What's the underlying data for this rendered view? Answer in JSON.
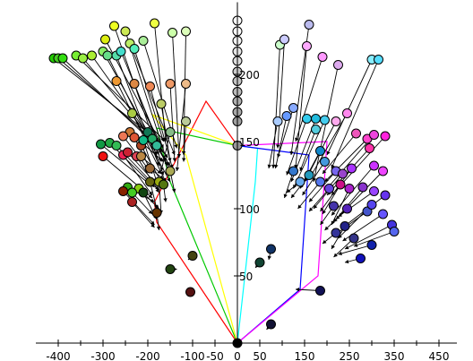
{
  "chart_data": {
    "type": "scatter",
    "title": "",
    "xlabel": "",
    "ylabel": "",
    "xlim": [
      -470,
      500
    ],
    "ylim": [
      -5,
      255
    ],
    "grid": false,
    "legend": "none",
    "x_ticks": [
      -400,
      -300,
      -200,
      -100,
      -50,
      0,
      50,
      150,
      250,
      350,
      450
    ],
    "x_tick_labels": [
      "-400",
      "-300",
      "-200",
      "-100",
      "-50",
      "0",
      "50",
      "150",
      "250",
      "350",
      "450"
    ],
    "y_ticks": [
      50,
      100,
      150,
      200
    ],
    "y_tick_labels": [
      "50",
      "100",
      "150",
      "200"
    ],
    "origin": [
      0,
      0
    ],
    "paths": [
      {
        "color": "#ff0000",
        "points": [
          [
            0,
            0
          ],
          [
            -180,
            90
          ],
          [
            -185,
            105
          ],
          [
            -70,
            180
          ],
          [
            0,
            147
          ]
        ]
      },
      {
        "color": "#00c800",
        "points": [
          [
            0,
            0
          ],
          [
            -150,
            120
          ],
          [
            -180,
            160
          ],
          [
            0,
            147
          ]
        ]
      },
      {
        "color": "#ffff00",
        "points": [
          [
            0,
            0
          ],
          [
            -115,
            140
          ],
          [
            -190,
            170
          ],
          [
            0,
            147
          ]
        ]
      },
      {
        "color": "#00ffff",
        "points": [
          [
            0,
            0
          ],
          [
            40,
            120
          ],
          [
            45,
            145
          ],
          [
            0,
            147
          ]
        ]
      },
      {
        "color": "#0000ff",
        "points": [
          [
            0,
            0
          ],
          [
            140,
            40
          ],
          [
            160,
            140
          ],
          [
            0,
            147
          ]
        ]
      },
      {
        "color": "#ff00ff",
        "points": [
          [
            0,
            0
          ],
          [
            180,
            50
          ],
          [
            200,
            150
          ],
          [
            0,
            147
          ]
        ]
      }
    ],
    "points": [
      {
        "x": -410,
        "y": 212,
        "color": "#22cc00",
        "tail": [
          -175,
          150
        ]
      },
      {
        "x": -400,
        "y": 212,
        "color": "#44cc22",
        "tail": [
          -170,
          146
        ]
      },
      {
        "x": -390,
        "y": 212,
        "color": "#33dd11",
        "tail": [
          -165,
          142
        ]
      },
      {
        "x": -360,
        "y": 214,
        "color": "#77ee33",
        "tail": [
          -160,
          150
        ]
      },
      {
        "x": -345,
        "y": 212,
        "color": "#99ee44",
        "tail": [
          -155,
          138
        ]
      },
      {
        "x": -325,
        "y": 214,
        "color": "#aaee33",
        "tail": [
          -150,
          132
        ]
      },
      {
        "x": -295,
        "y": 226,
        "color": "#ddee11",
        "tail": [
          -165,
          145
        ]
      },
      {
        "x": -275,
        "y": 236,
        "color": "#eeff22",
        "tail": [
          -170,
          135
        ]
      },
      {
        "x": -250,
        "y": 232,
        "color": "#cce955",
        "tail": [
          -150,
          128
        ]
      },
      {
        "x": -240,
        "y": 223,
        "color": "#bbee66",
        "tail": [
          -140,
          140
        ]
      },
      {
        "x": -210,
        "y": 225,
        "color": "#aaee99",
        "tail": [
          -135,
          145
        ]
      },
      {
        "x": -185,
        "y": 238,
        "color": "#eeff44",
        "tail": [
          -160,
          150
        ]
      },
      {
        "x": -145,
        "y": 231,
        "color": "#ccffaa",
        "tail": [
          -130,
          138
        ]
      },
      {
        "x": -115,
        "y": 232,
        "color": "#ddffbb",
        "tail": [
          -120,
          140
        ]
      },
      {
        "x": -300,
        "y": 217,
        "color": "#88ee66",
        "tail": [
          -185,
          148
        ]
      },
      {
        "x": -290,
        "y": 214,
        "color": "#66dd88",
        "tail": [
          -180,
          140
        ]
      },
      {
        "x": -270,
        "y": 214,
        "color": "#55ddaa",
        "tail": [
          -175,
          132
        ]
      },
      {
        "x": -260,
        "y": 217,
        "color": "#44ddcc",
        "tail": [
          -170,
          144
        ]
      },
      {
        "x": -230,
        "y": 219,
        "color": "#55eebb",
        "tail": [
          -165,
          150
        ]
      },
      {
        "x": -270,
        "y": 195,
        "color": "#ee9933",
        "tail": [
          -160,
          120
        ]
      },
      {
        "x": -230,
        "y": 193,
        "color": "#dd8844",
        "tail": [
          -150,
          125
        ]
      },
      {
        "x": -195,
        "y": 191,
        "color": "#ee8855",
        "tail": [
          -145,
          130
        ]
      },
      {
        "x": -150,
        "y": 193,
        "color": "#ee9966",
        "tail": [
          -140,
          135
        ]
      },
      {
        "x": -115,
        "y": 193,
        "color": "#eebb88",
        "tail": [
          -135,
          128
        ]
      },
      {
        "x": -170,
        "y": 178,
        "color": "#bbcc66",
        "tail": [
          -150,
          135
        ]
      },
      {
        "x": -235,
        "y": 171,
        "color": "#aacc44",
        "tail": [
          -150,
          120
        ]
      },
      {
        "x": -115,
        "y": 165,
        "color": "#bbcc99",
        "tail": [
          -120,
          135
        ]
      },
      {
        "x": -150,
        "y": 157,
        "color": "#88bb88",
        "tail": [
          -170,
          128
        ]
      },
      {
        "x": -195,
        "y": 153,
        "color": "#66bb77",
        "tail": [
          -165,
          125
        ]
      },
      {
        "x": -215,
        "y": 147,
        "color": "#aa4422",
        "tail": [
          -170,
          120
        ]
      },
      {
        "x": -240,
        "y": 157,
        "color": "#cc7733",
        "tail": [
          -165,
          135
        ]
      },
      {
        "x": -255,
        "y": 154,
        "color": "#ee7755",
        "tail": [
          -200,
          130
        ]
      },
      {
        "x": -230,
        "y": 153,
        "color": "#dd5533",
        "tail": [
          -190,
          126
        ]
      },
      {
        "x": -210,
        "y": 151,
        "color": "#11bb88",
        "tail": [
          -180,
          120
        ]
      },
      {
        "x": -200,
        "y": 157,
        "color": "#117755",
        "tail": [
          -175,
          140
        ]
      },
      {
        "x": -190,
        "y": 152,
        "color": "#22aa66",
        "tail": [
          -160,
          135
        ]
      },
      {
        "x": -180,
        "y": 147,
        "color": "#33bb99",
        "tail": [
          -155,
          132
        ]
      },
      {
        "x": -305,
        "y": 148,
        "color": "#119944",
        "tail": [
          -195,
          118
        ]
      },
      {
        "x": -285,
        "y": 149,
        "color": "#22aa44",
        "tail": [
          -185,
          116
        ]
      },
      {
        "x": -270,
        "y": 147,
        "color": "#33bb55",
        "tail": [
          -175,
          114
        ]
      },
      {
        "x": -255,
        "y": 140,
        "color": "#ee2255",
        "tail": [
          -190,
          110
        ]
      },
      {
        "x": -245,
        "y": 142,
        "color": "#cc2233",
        "tail": [
          -180,
          118
        ]
      },
      {
        "x": -225,
        "y": 139,
        "color": "#dd4455",
        "tail": [
          -175,
          112
        ]
      },
      {
        "x": -300,
        "y": 139,
        "color": "#ee1111",
        "tail": [
          -190,
          108
        ]
      },
      {
        "x": -215,
        "y": 139,
        "color": "#bb8844",
        "tail": [
          -170,
          126
        ]
      },
      {
        "x": -195,
        "y": 130,
        "color": "#996633",
        "tail": [
          -165,
          122
        ]
      },
      {
        "x": -195,
        "y": 120,
        "color": "#666611",
        "tail": [
          -180,
          100
        ]
      },
      {
        "x": -175,
        "y": 120,
        "color": "#99aa11",
        "tail": [
          -170,
          96
        ]
      },
      {
        "x": -220,
        "y": 115,
        "color": "#88cc11",
        "tail": [
          -175,
          100
        ]
      },
      {
        "x": -245,
        "y": 116,
        "color": "#33aa11",
        "tail": [
          -185,
          105
        ]
      },
      {
        "x": -235,
        "y": 112,
        "color": "#44cc22",
        "tail": [
          -190,
          96
        ]
      },
      {
        "x": -210,
        "y": 112,
        "color": "#114411",
        "tail": [
          -180,
          92
        ]
      },
      {
        "x": -255,
        "y": 113,
        "color": "#882200",
        "tail": [
          -185,
          88
        ]
      },
      {
        "x": -235,
        "y": 105,
        "color": "#aa2222",
        "tail": [
          -185,
          86
        ]
      },
      {
        "x": -180,
        "y": 97,
        "color": "#663300",
        "tail": [
          -175,
          84
        ]
      },
      {
        "x": -165,
        "y": 118,
        "color": "#557711",
        "tail": [
          -160,
          105
        ]
      },
      {
        "x": -150,
        "y": 128,
        "color": "#aaaa55",
        "tail": [
          -140,
          112
        ]
      },
      {
        "x": -100,
        "y": 65,
        "color": "#444411",
        "tail": [
          -110,
          62
        ]
      },
      {
        "x": -150,
        "y": 55,
        "color": "#224411",
        "tail": [
          -135,
          55
        ]
      },
      {
        "x": -105,
        "y": 38,
        "color": "#551111",
        "tail": [
          -110,
          40
        ]
      },
      {
        "x": 95,
        "y": 222,
        "color": "#ccffcc",
        "tail": [
          80,
          130
        ]
      },
      {
        "x": 160,
        "y": 237,
        "color": "#bbbbee",
        "tail": [
          120,
          140
        ]
      },
      {
        "x": 105,
        "y": 226,
        "color": "#ccccff",
        "tail": [
          90,
          145
        ]
      },
      {
        "x": 190,
        "y": 213,
        "color": "#ff99ff",
        "tail": [
          130,
          150
        ]
      },
      {
        "x": 155,
        "y": 221,
        "color": "#ffaaff",
        "tail": [
          130,
          130
        ]
      },
      {
        "x": 225,
        "y": 207,
        "color": "#ddaaee",
        "tail": [
          170,
          120
        ]
      },
      {
        "x": 300,
        "y": 211,
        "color": "#88eeff",
        "tail": [
          200,
          140
        ]
      },
      {
        "x": 315,
        "y": 211,
        "color": "#55ddff",
        "tail": [
          210,
          130
        ]
      },
      {
        "x": 125,
        "y": 175,
        "color": "#88aaff",
        "tail": [
          90,
          138
        ]
      },
      {
        "x": 110,
        "y": 169,
        "color": "#6699ff",
        "tail": [
          85,
          130
        ]
      },
      {
        "x": 90,
        "y": 165,
        "color": "#aaccff",
        "tail": [
          70,
          130
        ]
      },
      {
        "x": 155,
        "y": 167,
        "color": "#33ccee",
        "tail": [
          110,
          125
        ]
      },
      {
        "x": 175,
        "y": 167,
        "color": "#22bbdd",
        "tail": [
          120,
          120
        ]
      },
      {
        "x": 195,
        "y": 166,
        "color": "#44ccee",
        "tail": [
          125,
          115
        ]
      },
      {
        "x": 220,
        "y": 165,
        "color": "#ffaaee",
        "tail": [
          150,
          120
        ]
      },
      {
        "x": 245,
        "y": 171,
        "color": "#ff88ee",
        "tail": [
          160,
          122
        ]
      },
      {
        "x": 175,
        "y": 159,
        "color": "#55ccdd",
        "tail": [
          140,
          128
        ]
      },
      {
        "x": 265,
        "y": 156,
        "color": "#ee55bb",
        "tail": [
          190,
          126
        ]
      },
      {
        "x": 290,
        "y": 152,
        "color": "#ff44cc",
        "tail": [
          195,
          120
        ]
      },
      {
        "x": 305,
        "y": 155,
        "color": "#ee44dd",
        "tail": [
          200,
          115
        ]
      },
      {
        "x": 330,
        "y": 154,
        "color": "#ff22dd",
        "tail": [
          210,
          110
        ]
      },
      {
        "x": 295,
        "y": 145,
        "color": "#ff33aa",
        "tail": [
          200,
          110
        ]
      },
      {
        "x": 185,
        "y": 143,
        "color": "#1188cc",
        "tail": [
          140,
          115
        ]
      },
      {
        "x": 195,
        "y": 135,
        "color": "#4499dd",
        "tail": [
          145,
          110
        ]
      },
      {
        "x": 220,
        "y": 128,
        "color": "#7766ee",
        "tail": [
          160,
          105
        ]
      },
      {
        "x": 235,
        "y": 126,
        "color": "#9944cc",
        "tail": [
          170,
          100
        ]
      },
      {
        "x": 255,
        "y": 130,
        "color": "#aa33ff",
        "tail": [
          185,
          98
        ]
      },
      {
        "x": 305,
        "y": 132,
        "color": "#cc33ff",
        "tail": [
          210,
          95
        ]
      },
      {
        "x": 325,
        "y": 128,
        "color": "#ee44ff",
        "tail": [
          220,
          92
        ]
      },
      {
        "x": 125,
        "y": 128,
        "color": "#3377cc",
        "tail": [
          105,
          108
        ]
      },
      {
        "x": 140,
        "y": 120,
        "color": "#66aaee",
        "tail": [
          110,
          112
        ]
      },
      {
        "x": 160,
        "y": 125,
        "color": "#2299bb",
        "tail": [
          120,
          108
        ]
      },
      {
        "x": 185,
        "y": 120,
        "color": "#5577ee",
        "tail": [
          135,
          100
        ]
      },
      {
        "x": 205,
        "y": 115,
        "color": "#6644dd",
        "tail": [
          160,
          98
        ]
      },
      {
        "x": 230,
        "y": 118,
        "color": "#cc1188",
        "tail": [
          190,
          96
        ]
      },
      {
        "x": 250,
        "y": 115,
        "color": "#aa22cc",
        "tail": [
          210,
          88
        ]
      },
      {
        "x": 280,
        "y": 116,
        "color": "#8833cc",
        "tail": [
          215,
          90
        ]
      },
      {
        "x": 305,
        "y": 113,
        "color": "#9944ff",
        "tail": [
          225,
          94
        ]
      },
      {
        "x": 330,
        "y": 110,
        "color": "#6633ee",
        "tail": [
          235,
          86
        ]
      },
      {
        "x": 215,
        "y": 102,
        "color": "#4433aa",
        "tail": [
          185,
          88
        ]
      },
      {
        "x": 245,
        "y": 100,
        "color": "#5522bb",
        "tail": [
          195,
          84
        ]
      },
      {
        "x": 290,
        "y": 98,
        "color": "#4455cc",
        "tail": [
          215,
          80
        ]
      },
      {
        "x": 300,
        "y": 103,
        "color": "#5544ee",
        "tail": [
          225,
          78
        ]
      },
      {
        "x": 325,
        "y": 96,
        "color": "#6655ff",
        "tail": [
          235,
          76
        ]
      },
      {
        "x": 345,
        "y": 88,
        "color": "#4433dd",
        "tail": [
          240,
          70
        ]
      },
      {
        "x": 350,
        "y": 83,
        "color": "#5566ee",
        "tail": [
          260,
          72
        ]
      },
      {
        "x": 220,
        "y": 82,
        "color": "#333399",
        "tail": [
          190,
          74
        ]
      },
      {
        "x": 240,
        "y": 87,
        "color": "#222288",
        "tail": [
          210,
          70
        ]
      },
      {
        "x": 260,
        "y": 78,
        "color": "#333388",
        "tail": [
          215,
          64
        ]
      },
      {
        "x": 300,
        "y": 73,
        "color": "#1122aa",
        "tail": [
          225,
          66
        ]
      },
      {
        "x": 275,
        "y": 63,
        "color": "#1111bb",
        "tail": [
          240,
          60
        ]
      },
      {
        "x": 75,
        "y": 70,
        "color": "#113366",
        "tail": [
          70,
          62
        ]
      },
      {
        "x": 50,
        "y": 60,
        "color": "#114433",
        "tail": [
          40,
          56
        ]
      },
      {
        "x": 185,
        "y": 39,
        "color": "#111155",
        "tail": [
          130,
          40
        ]
      },
      {
        "x": 75,
        "y": 14,
        "color": "#111133",
        "tail": [
          65,
          10
        ]
      },
      {
        "x": 0,
        "y": 240,
        "color": "#ffffff",
        "tail": null
      },
      {
        "x": 0,
        "y": 232,
        "color": "#ffffff",
        "tail": null
      },
      {
        "x": 0,
        "y": 225,
        "color": "#f4f4f4",
        "tail": null
      },
      {
        "x": 0,
        "y": 217,
        "color": "#e6e6e6",
        "tail": null
      },
      {
        "x": 0,
        "y": 210,
        "color": "#dddddd",
        "tail": null
      },
      {
        "x": 0,
        "y": 202,
        "color": "#cccccc",
        "tail": null
      },
      {
        "x": 0,
        "y": 195,
        "color": "#c4c4c4",
        "tail": null
      },
      {
        "x": 0,
        "y": 187,
        "color": "#bbbbbb",
        "tail": null
      },
      {
        "x": 0,
        "y": 180,
        "color": "#b0b0b0",
        "tail": null
      },
      {
        "x": 0,
        "y": 172,
        "color": "#a8a8a8",
        "tail": null
      },
      {
        "x": 0,
        "y": 165,
        "color": "#a0a0a0",
        "tail": null
      },
      {
        "x": 0,
        "y": 147,
        "color": "#999999",
        "tail": null
      },
      {
        "x": 0,
        "y": 0,
        "color": "#000000",
        "tail": null
      }
    ]
  }
}
